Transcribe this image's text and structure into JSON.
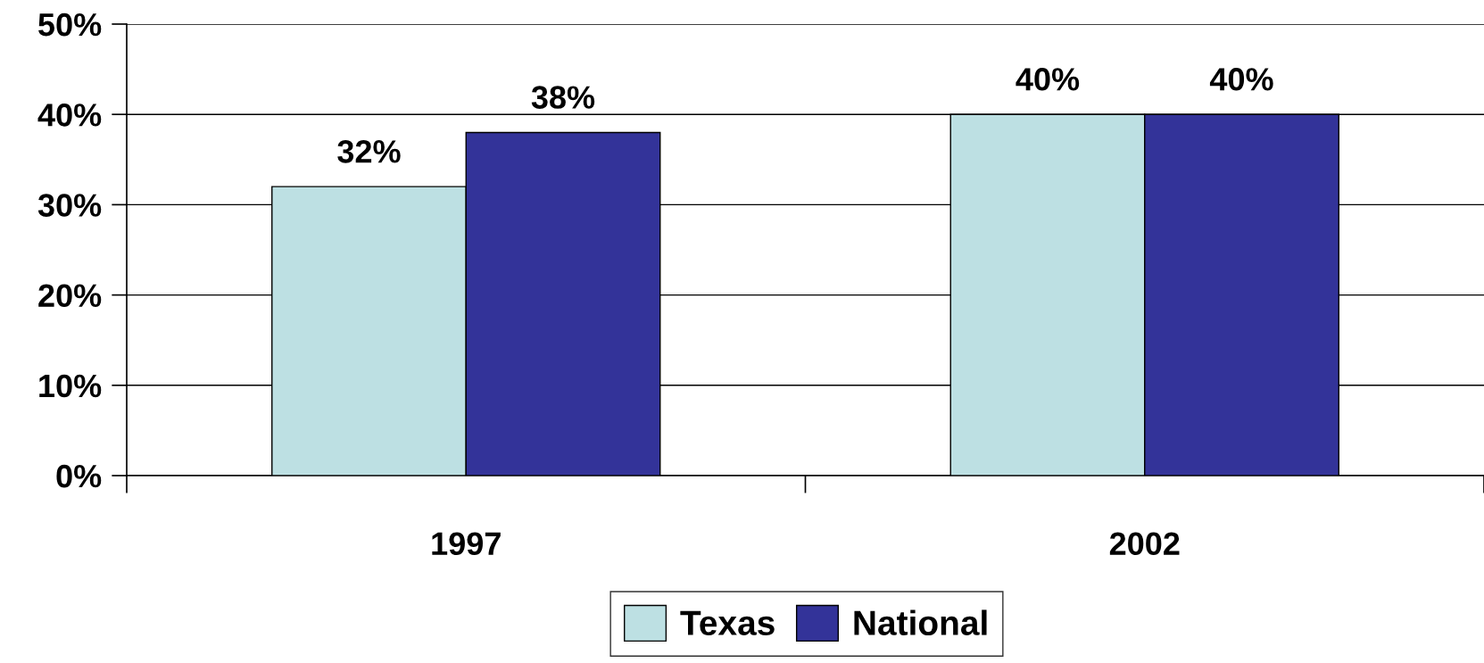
{
  "chart_data": {
    "type": "bar",
    "categories": [
      "1997",
      "2002"
    ],
    "series": [
      {
        "name": "Texas",
        "color": "#bde0e3",
        "values": [
          32,
          40
        ],
        "value_labels": [
          "32%",
          "40%"
        ]
      },
      {
        "name": "National",
        "color": "#333399",
        "values": [
          38,
          40
        ],
        "value_labels": [
          "38%",
          "40%"
        ]
      }
    ],
    "ylim": [
      0,
      50
    ],
    "yticks": [
      {
        "value": 0,
        "label": "0%"
      },
      {
        "value": 10,
        "label": "10%"
      },
      {
        "value": 20,
        "label": "20%"
      },
      {
        "value": 30,
        "label": "30%"
      },
      {
        "value": 40,
        "label": "40%"
      },
      {
        "value": 50,
        "label": "50%"
      }
    ],
    "grid": "y",
    "legend": "bottom"
  }
}
